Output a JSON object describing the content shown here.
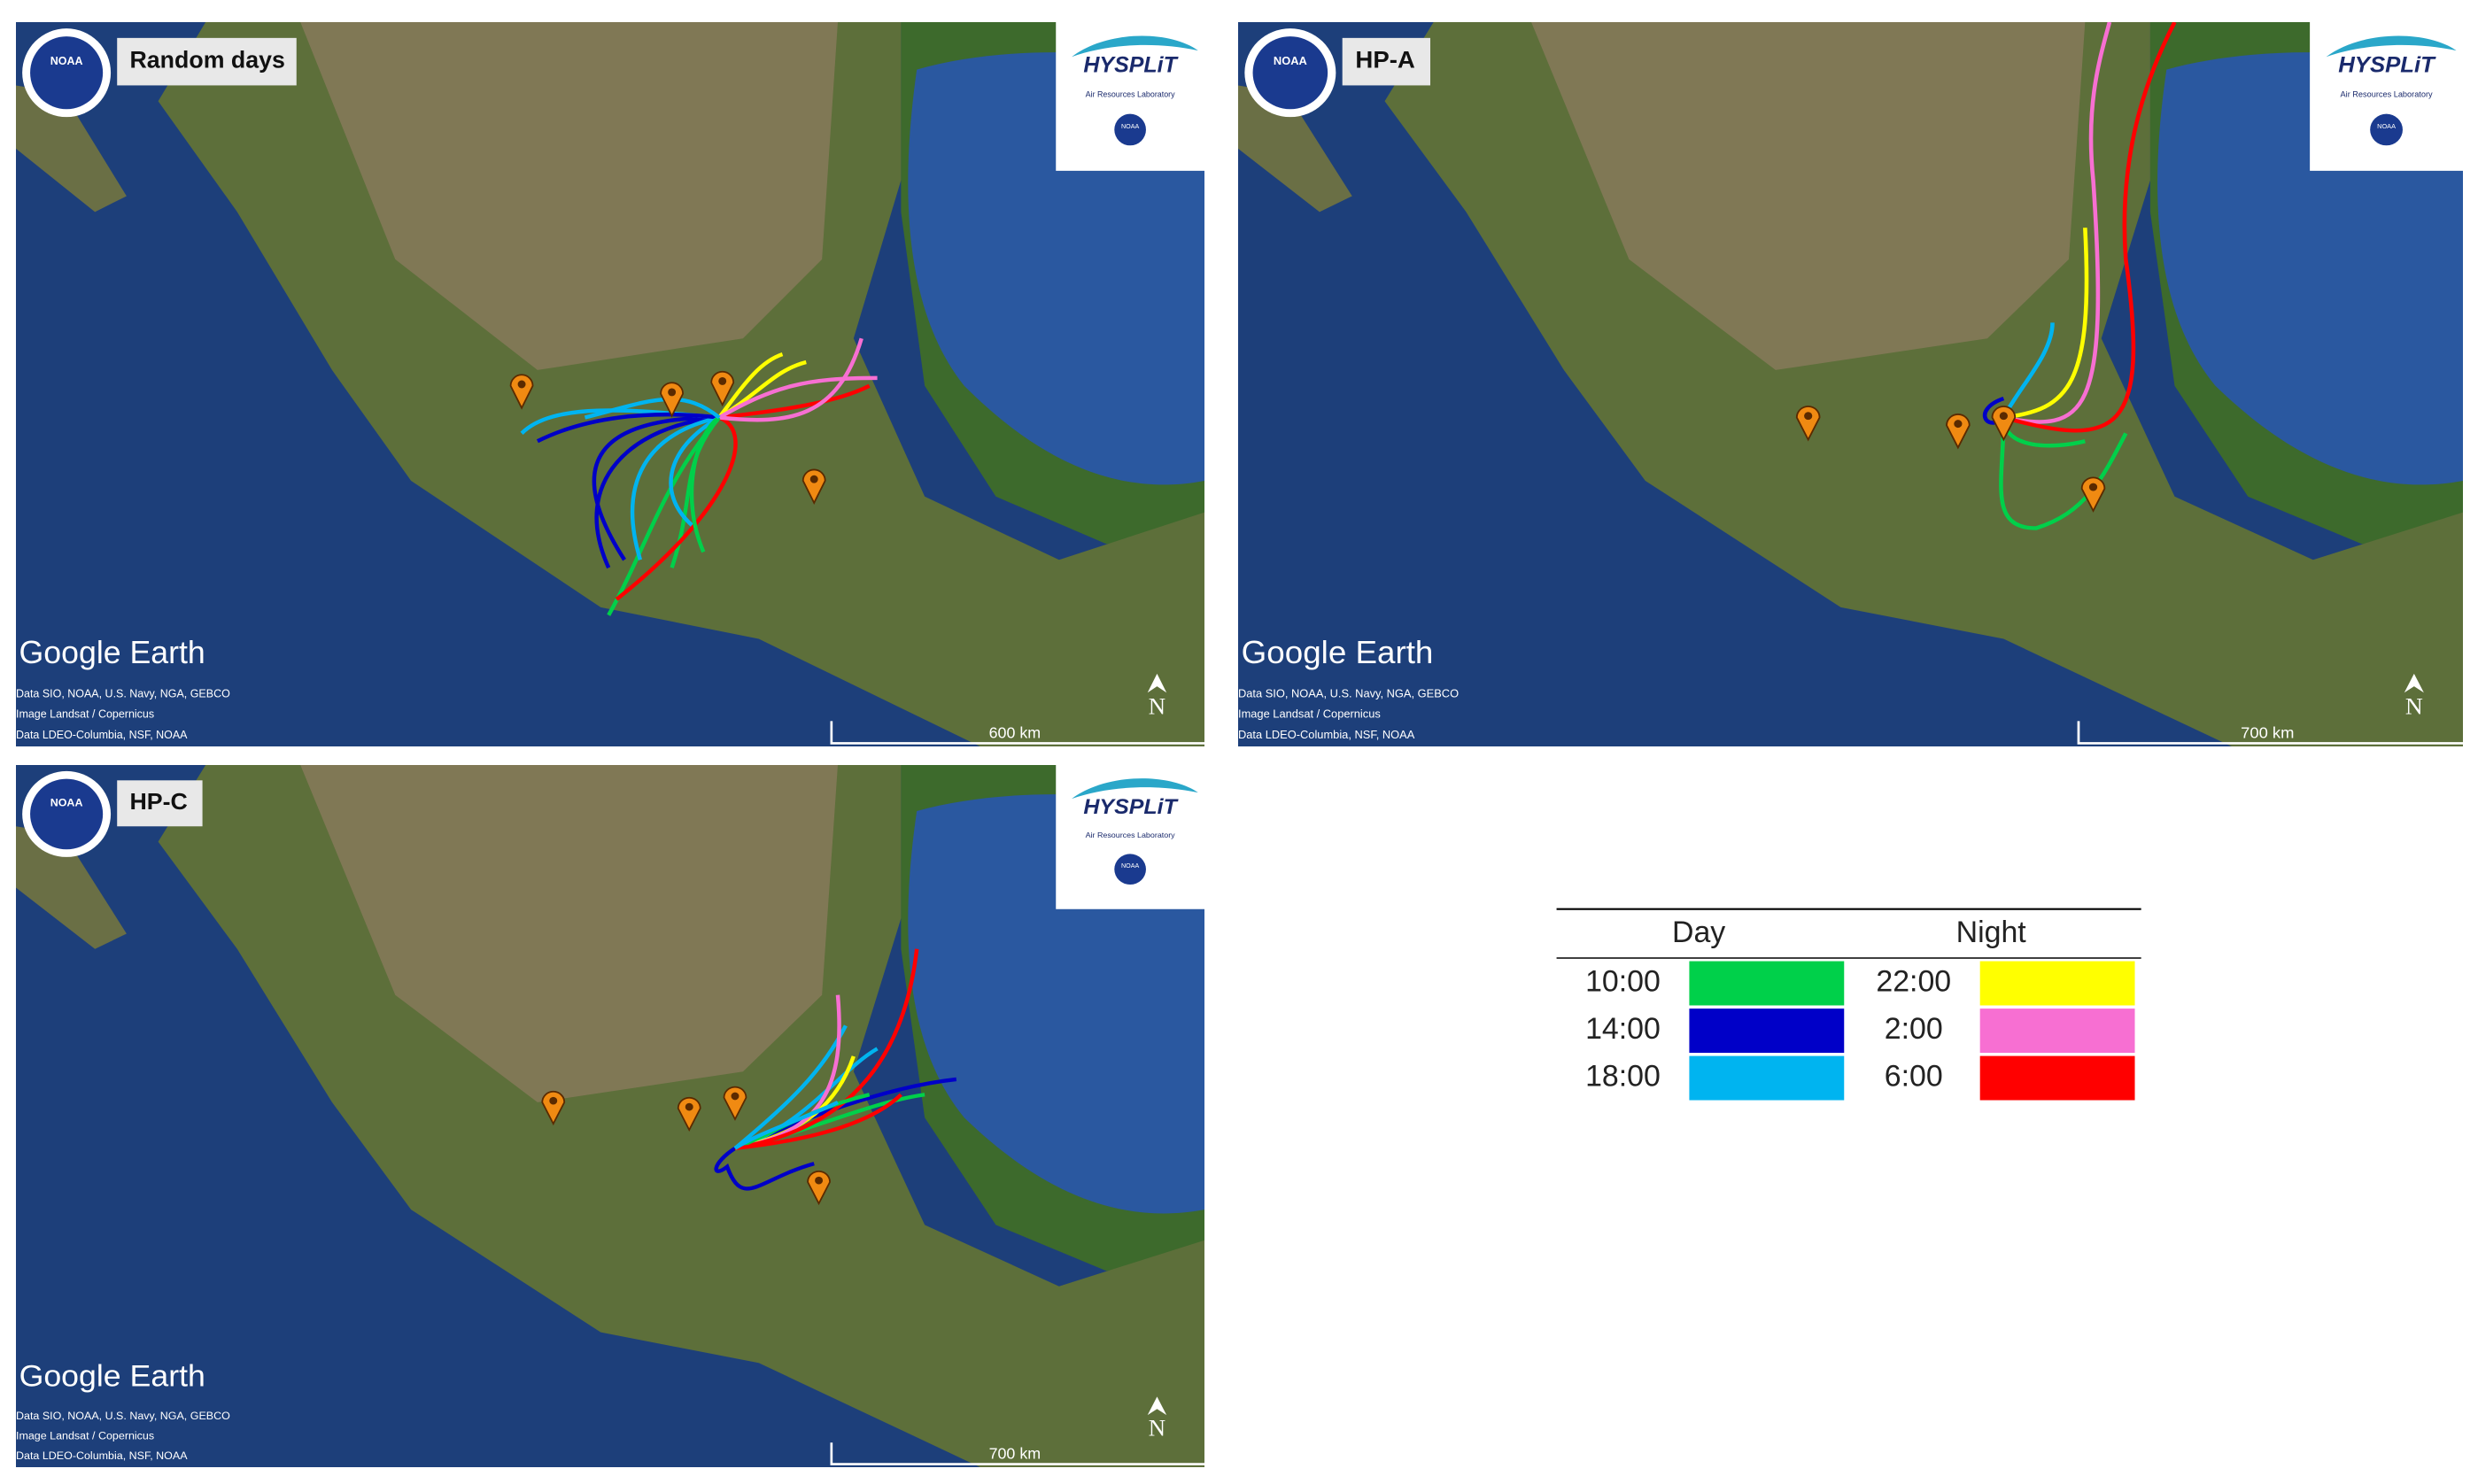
{
  "panels": [
    {
      "label": "Random days",
      "brand": "Google Earth",
      "attribution": [
        "Data SIO, NOAA, U.S. Navy, NGA, GEBCO",
        "Image Landsat / Copernicus",
        "Data LDEO-Columbia, NSF, NOAA"
      ],
      "scale": "600 km",
      "north": "N",
      "hysplit": "HYSPLiT",
      "lab": "Air Resources Laboratory",
      "noaa": "NOAA"
    },
    {
      "label": "HP-A",
      "brand": "Google Earth",
      "attribution": [
        "Data SIO, NOAA, U.S. Navy, NGA, GEBCO",
        "Image Landsat / Copernicus",
        "Data LDEO-Columbia, NSF, NOAA"
      ],
      "scale": "700 km",
      "north": "N",
      "hysplit": "HYSPLiT",
      "lab": "Air Resources Laboratory",
      "noaa": "NOAA"
    },
    {
      "label": "HP-C",
      "brand": "Google Earth",
      "attribution": [
        "Data SIO, NOAA, U.S. Navy, NGA, GEBCO",
        "Image Landsat / Copernicus",
        "Data LDEO-Columbia, NSF, NOAA"
      ],
      "scale": "700 km",
      "north": "N",
      "hysplit": "HYSPLiT",
      "lab": "Air Resources Laboratory",
      "noaa": "NOAA"
    }
  ],
  "legend": {
    "headers": [
      "Day",
      "Night"
    ],
    "rows": [
      [
        {
          "time": "10:00",
          "color": "#00d04a"
        },
        {
          "time": "22:00",
          "color": "#ffff00"
        }
      ],
      [
        {
          "time": "14:00",
          "color": "#0000c8"
        },
        {
          "time": "2:00",
          "color": "#f76fd2"
        }
      ],
      [
        {
          "time": "18:00",
          "color": "#00b4f0"
        },
        {
          "time": "6:00",
          "color": "#ff0000"
        }
      ]
    ]
  }
}
